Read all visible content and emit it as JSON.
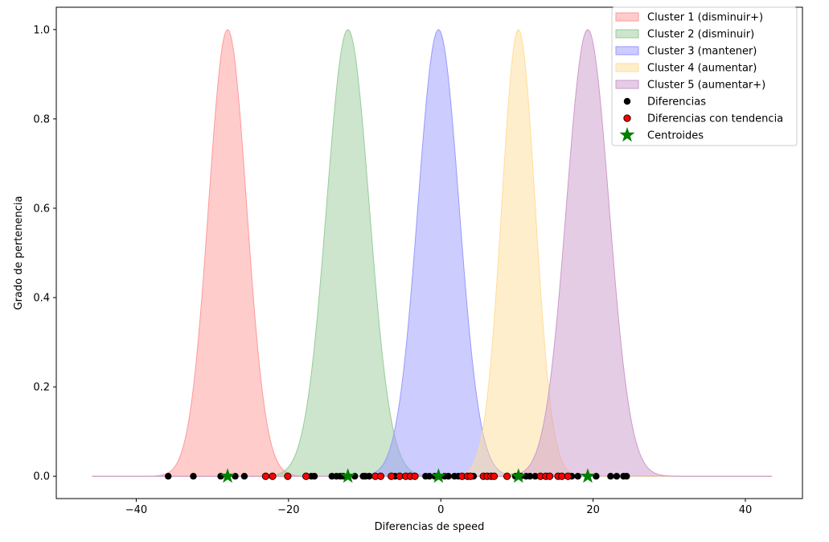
{
  "chart_data": {
    "type": "area",
    "title": "",
    "xlabel": "Diferencias de speed",
    "ylabel": "Grado de pertenencia",
    "xlim": [
      -50.5,
      47.5
    ],
    "ylim": [
      -0.05,
      1.05
    ],
    "xticks": [
      -40,
      -20,
      0,
      20,
      40
    ],
    "yticks": [
      0.0,
      0.2,
      0.4,
      0.6,
      0.8,
      1.0
    ],
    "xtick_labels": [
      "−40",
      "−20",
      "0",
      "20",
      "40"
    ],
    "ytick_labels": [
      "0.0",
      "0.2",
      "0.4",
      "0.6",
      "0.8",
      "1.0"
    ],
    "grid": false,
    "legend_position": "top-right",
    "curve_domain": [
      -45.8,
      43.5
    ],
    "series": [
      {
        "name": "Cluster 1 (disminuir+)",
        "center": -28.0,
        "sigma": 2.5,
        "color": "#ff9999"
      },
      {
        "name": "Cluster 2 (disminuir)",
        "center": -12.2,
        "sigma": 2.8,
        "color": "#99cc99"
      },
      {
        "name": "Cluster 3 (mantener)",
        "center": -0.3,
        "sigma": 2.7,
        "color": "#9999ff"
      },
      {
        "name": "Cluster 4 (aumentar)",
        "center": 10.2,
        "sigma": 2.2,
        "color": "#ffdd99"
      },
      {
        "name": "Cluster 5 (aumentar+)",
        "center": 19.3,
        "sigma": 2.8,
        "color": "#cc99cc"
      }
    ],
    "points": {
      "name": "Diferencias",
      "color": "#000000",
      "y": 0,
      "x": [
        -35.8,
        -32.5,
        -28.9,
        -27.0,
        -25.8,
        -17.0,
        -16.6,
        -14.3,
        -13.7,
        -13.2,
        -12.8,
        -11.3,
        -10.2,
        -9.9,
        -9.4,
        -6.0,
        -2.0,
        -1.5,
        -0.8,
        0.5,
        1.0,
        1.8,
        2.3,
        4.3,
        9.8,
        10.5,
        11.2,
        11.7,
        12.4,
        17.2,
        18.0,
        20.4,
        22.3,
        23.1,
        24.0,
        24.4
      ]
    },
    "points_trend": {
      "name": "Diferencias con tendencia",
      "color": "#ff0000",
      "y": 0,
      "x": [
        -23.0,
        -22.1,
        -20.1,
        -17.7,
        -8.6,
        -7.9,
        -6.5,
        -5.4,
        -4.6,
        -4.0,
        -3.4,
        2.8,
        3.5,
        3.9,
        5.6,
        6.1,
        6.6,
        7.0,
        8.7,
        13.1,
        13.8,
        14.3,
        15.4,
        15.9,
        16.7
      ]
    },
    "centroids": {
      "name": "Centroides",
      "color": "#008000",
      "x": [
        -28.0,
        -12.2,
        -0.3,
        10.2,
        19.3
      ],
      "y": 0
    }
  }
}
